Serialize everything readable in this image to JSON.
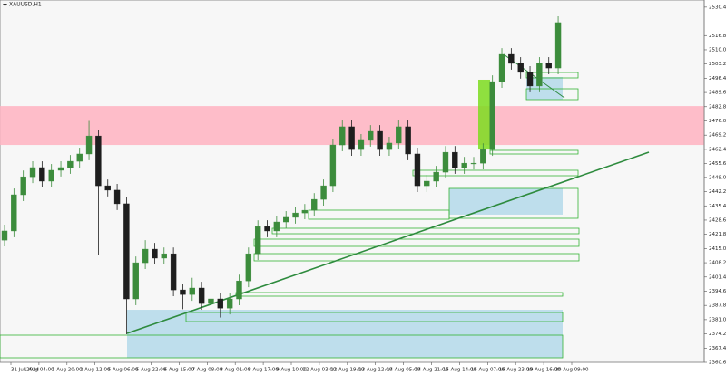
{
  "chart_data": {
    "type": "candlestick",
    "title": "XAUUSD,H1",
    "open": [
      2419.0,
      2423.4,
      2440.7,
      2449.3,
      2453.7,
      2447.2,
      2452.4,
      2453.7,
      2456.7,
      2460.2,
      2468.8,
      2445.0,
      2442.9,
      2436.4,
      2390.9,
      2408.2,
      2414.7,
      2410.4,
      2412.5,
      2395.2,
      2393.0,
      2396.1,
      2388.7,
      2390.9,
      2386.5,
      2390.9,
      2399.5,
      2412.5,
      2425.5,
      2423.4,
      2427.7,
      2429.9,
      2432.0,
      2433.3,
      2438.5,
      2445.0,
      2464.5,
      2473.2,
      2462.3,
      2466.7,
      2471.0,
      2462.3,
      2465.4,
      2473.2,
      2460.2,
      2445.0,
      2447.2,
      2451.5,
      2461.0,
      2453.7,
      2455.8,
      2455.8,
      2462.3,
      2494.8,
      2507.8,
      2503.5,
      2499.2,
      2492.7,
      2503.5,
      2501.3
    ],
    "high": [
      2426.4,
      2443.7,
      2452.3,
      2456.7,
      2456.7,
      2455.4,
      2456.7,
      2459.7,
      2463.2,
      2476.0,
      2471.8,
      2448.0,
      2445.9,
      2439.4,
      2411.2,
      2419.0,
      2417.7,
      2415.5,
      2415.5,
      2398.2,
      2401.0,
      2399.1,
      2393.9,
      2393.9,
      2393.9,
      2402.5,
      2415.5,
      2428.5,
      2428.5,
      2430.7,
      2432.9,
      2435.0,
      2436.3,
      2441.5,
      2448.0,
      2467.5,
      2476.2,
      2476.2,
      2469.7,
      2474.0,
      2474.0,
      2468.4,
      2476.2,
      2476.2,
      2463.2,
      2450.2,
      2454.5,
      2464.0,
      2464.0,
      2458.8,
      2458.8,
      2465.3,
      2497.8,
      2510.8,
      2510.8,
      2506.5,
      2502.2,
      2506.5,
      2506.5,
      2526.0
    ],
    "low": [
      2416.0,
      2420.4,
      2437.7,
      2446.3,
      2444.2,
      2444.2,
      2449.4,
      2450.7,
      2453.7,
      2457.2,
      2412.0,
      2439.9,
      2433.4,
      2374.0,
      2387.9,
      2405.2,
      2407.4,
      2407.4,
      2392.2,
      2386.0,
      2390.0,
      2385.7,
      2385.7,
      2382.0,
      2383.5,
      2387.9,
      2396.5,
      2409.5,
      2420.4,
      2420.4,
      2424.7,
      2426.9,
      2429.0,
      2430.3,
      2435.5,
      2442.0,
      2461.5,
      2459.3,
      2459.3,
      2463.7,
      2459.3,
      2459.3,
      2462.4,
      2457.2,
      2442.0,
      2442.0,
      2444.2,
      2448.5,
      2450.7,
      2450.7,
      2452.8,
      2452.8,
      2459.3,
      2491.8,
      2500.5,
      2496.2,
      2489.7,
      2489.7,
      2498.3,
      2498.3
    ],
    "close": [
      2423.4,
      2440.7,
      2449.3,
      2453.7,
      2447.2,
      2452.4,
      2453.7,
      2456.7,
      2460.2,
      2468.8,
      2445.0,
      2442.9,
      2436.4,
      2390.9,
      2408.2,
      2414.7,
      2410.4,
      2412.5,
      2395.2,
      2393.0,
      2396.1,
      2388.7,
      2390.9,
      2386.5,
      2390.9,
      2399.5,
      2412.5,
      2425.5,
      2423.4,
      2427.7,
      2429.9,
      2432.0,
      2433.3,
      2438.5,
      2445.0,
      2464.5,
      2473.2,
      2462.3,
      2466.7,
      2471.0,
      2462.3,
      2465.4,
      2473.2,
      2460.2,
      2445.0,
      2447.2,
      2451.5,
      2461.0,
      2453.7,
      2455.8,
      2455.8,
      2462.3,
      2494.8,
      2507.8,
      2503.5,
      2499.2,
      2492.7,
      2503.5,
      2501.3,
      2523.0
    ],
    "up_color": "#3c8c3c",
    "down_color": "#1e1e1e",
    "zones": [
      {
        "from": 2464.5,
        "to": 2483.1,
        "color": "#ffb3c1"
      },
      {
        "from": 2362.7,
        "to": 2385.7,
        "color": "#b4d9ea"
      },
      {
        "from": 2431.2,
        "to": 2443.7,
        "color": "#b4d9ea"
      },
      {
        "from": 2486.2,
        "to": 2497.0,
        "color": "#b4d9ea"
      },
      {
        "from": 2462.3,
        "to": 2495.7,
        "color": "#7ddc1f"
      }
    ],
    "xtick_labels": [
      "31 Jul 2024",
      "1 Aug 04:00",
      "1 Aug 20:00",
      "2 Aug 12:00",
      "5 Aug 06:00",
      "5 Aug 22:00",
      "6 Aug 15:00",
      "7 Aug 08:00",
      "8 Aug 01:00",
      "8 Aug 17:00",
      "9 Aug 10:00",
      "12 Aug 03:00",
      "12 Aug 19:00",
      "13 Aug 12:00",
      "14 Aug 05:00",
      "14 Aug 21:00",
      "15 Aug 14:00",
      "16 Aug 07:00",
      "16 Aug 23:00",
      "19 Aug 16:00",
      "20 Aug 09:00"
    ],
    "ylim": [
      2360.6,
      2533.8
    ],
    "yticks": [
      {
        "value": 2530.4,
        "label": "2530.40"
      },
      {
        "value": 2516.8,
        "label": "2516.80"
      },
      {
        "value": 2510.0,
        "label": "2510.00"
      },
      {
        "value": 2503.2,
        "label": "2503.20"
      },
      {
        "value": 2496.4,
        "label": "2496.40"
      },
      {
        "value": 2489.6,
        "label": "2489.60"
      },
      {
        "value": 2482.8,
        "label": "2482.80"
      },
      {
        "value": 2476.0,
        "label": "2476.00"
      },
      {
        "value": 2469.2,
        "label": "2469.20"
      },
      {
        "value": 2462.4,
        "label": "2462.40"
      },
      {
        "value": 2455.6,
        "label": "2455.60"
      },
      {
        "value": 2449.0,
        "label": "2449.00"
      },
      {
        "value": 2442.2,
        "label": "2442.20"
      },
      {
        "value": 2435.4,
        "label": "2435.40"
      },
      {
        "value": 2428.6,
        "label": "2428.60"
      },
      {
        "value": 2421.8,
        "label": "2421.80"
      },
      {
        "value": 2415.0,
        "label": "2415.00"
      },
      {
        "value": 2408.2,
        "label": "2408.20"
      },
      {
        "value": 2401.4,
        "label": "2401.40"
      },
      {
        "value": 2394.6,
        "label": "2394.60"
      },
      {
        "value": 2387.8,
        "label": "2387.80"
      },
      {
        "value": 2381.0,
        "label": "2381.00"
      },
      {
        "value": 2374.2,
        "label": "2374.20"
      },
      {
        "value": 2367.4,
        "label": "2367.40"
      },
      {
        "value": 2360.6,
        "label": "2360.60"
      }
    ]
  }
}
